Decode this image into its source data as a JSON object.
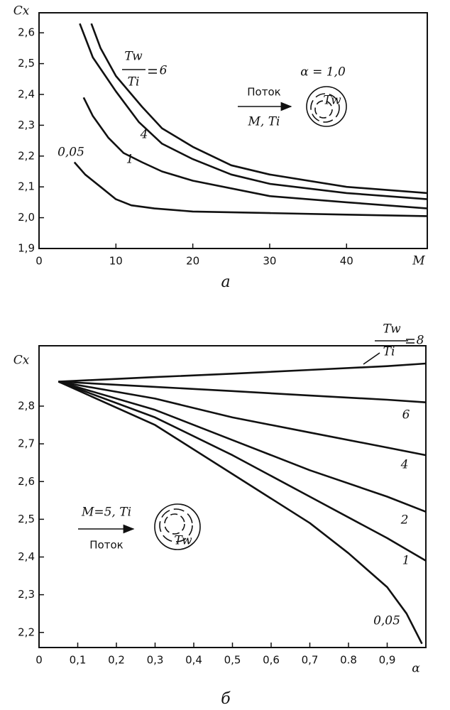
{
  "chart_data": [
    {
      "type": "line",
      "y_label": "Cx",
      "x_label": "M",
      "caption": "a",
      "xlim": [
        0,
        50.5
      ],
      "ylim": [
        1.9,
        2.665
      ],
      "xticks": [
        0,
        10,
        20,
        30,
        40
      ],
      "yticks": [
        {
          "value": 1.9,
          "label": "1,9"
        },
        {
          "value": 2.0,
          "label": "2,0"
        },
        {
          "value": 2.1,
          "label": "2,1"
        },
        {
          "value": 2.2,
          "label": "2,2"
        },
        {
          "value": 2.3,
          "label": "2,3"
        },
        {
          "value": 2.4,
          "label": "2,4"
        },
        {
          "value": 2.5,
          "label": "2,5"
        },
        {
          "value": 2.6,
          "label": "2,6"
        }
      ],
      "series": [
        {
          "name": "6",
          "color": "#111111",
          "x": [
            6.8,
            8,
            10,
            13.4,
            16,
            20,
            25,
            30,
            40,
            50.5
          ],
          "values": [
            2.63,
            2.55,
            2.46,
            2.36,
            2.29,
            2.23,
            2.17,
            2.14,
            2.1,
            2.08
          ]
        },
        {
          "name": "4",
          "color": "#111111",
          "x": [
            5.3,
            7,
            10,
            13,
            16,
            20,
            25,
            30,
            40,
            50.5
          ],
          "values": [
            2.63,
            2.52,
            2.41,
            2.31,
            2.24,
            2.19,
            2.14,
            2.11,
            2.08,
            2.06
          ]
        },
        {
          "name": "1",
          "color": "#111111",
          "x": [
            5.8,
            7,
            9,
            11,
            13.4,
            16,
            20,
            30,
            40,
            50.5
          ],
          "values": [
            2.39,
            2.33,
            2.26,
            2.21,
            2.18,
            2.15,
            2.12,
            2.07,
            2.05,
            2.03
          ]
        },
        {
          "name": "0,05",
          "color": "#111111",
          "x": [
            4.6,
            6,
            8,
            10,
            12,
            15,
            20,
            30,
            40,
            50.5
          ],
          "values": [
            2.18,
            2.14,
            2.1,
            2.06,
            2.04,
            2.03,
            2.02,
            2.015,
            2.01,
            2.005
          ]
        }
      ],
      "annotations": {
        "ratio_top": "Tw",
        "ratio_bottom": "Ti",
        "alpha": "α = 1,0",
        "flow": "Поток",
        "flow_params": "M, Ti",
        "sphere": "Tw"
      }
    },
    {
      "type": "line",
      "y_label": "Cx",
      "x_label": "α",
      "caption": "б",
      "xlim": [
        0,
        1.0
      ],
      "ylim": [
        2.16,
        2.96
      ],
      "xticks": [
        0,
        {
          "value": 0.1,
          "label": "0,1"
        },
        {
          "value": 0.2,
          "label": "0,2"
        },
        {
          "value": 0.3,
          "label": "0,3"
        },
        {
          "value": 0.4,
          "label": "0,4"
        },
        {
          "value": 0.5,
          "label": "0,5"
        },
        {
          "value": 0.6,
          "label": "0,6"
        },
        {
          "value": 0.7,
          "label": "0,7"
        },
        {
          "value": 0.8,
          "label": "0.8"
        },
        {
          "value": 0.9,
          "label": "0,9"
        }
      ],
      "yticks": [
        {
          "value": 2.2,
          "label": "2,2"
        },
        {
          "value": 2.3,
          "label": "2,3"
        },
        {
          "value": 2.4,
          "label": "2,4"
        },
        {
          "value": 2.5,
          "label": "2,5"
        },
        {
          "value": 2.6,
          "label": "2,6"
        },
        {
          "value": 2.7,
          "label": "2,7"
        },
        {
          "value": 2.8,
          "label": "2,8"
        }
      ],
      "series": [
        {
          "name": "8",
          "color": "#111111",
          "x": [
            0.05,
            0.3,
            0.5,
            0.7,
            0.9,
            1.0
          ],
          "values": [
            2.865,
            2.877,
            2.886,
            2.896,
            2.906,
            2.913
          ]
        },
        {
          "name": "6",
          "color": "#111111",
          "x": [
            0.05,
            0.3,
            0.5,
            0.7,
            0.9,
            1.0
          ],
          "values": [
            2.865,
            2.851,
            2.84,
            2.828,
            2.817,
            2.81
          ]
        },
        {
          "name": "4",
          "color": "#111111",
          "x": [
            0.05,
            0.3,
            0.5,
            0.7,
            0.9,
            1.0
          ],
          "values": [
            2.865,
            2.82,
            2.77,
            2.73,
            2.69,
            2.67
          ]
        },
        {
          "name": "2",
          "color": "#111111",
          "x": [
            0.05,
            0.3,
            0.5,
            0.7,
            0.9,
            1.0
          ],
          "values": [
            2.865,
            2.79,
            2.71,
            2.63,
            2.56,
            2.52
          ]
        },
        {
          "name": "1",
          "color": "#111111",
          "x": [
            0.05,
            0.3,
            0.5,
            0.7,
            0.9,
            1.0
          ],
          "values": [
            2.865,
            2.77,
            2.67,
            2.56,
            2.45,
            2.39
          ]
        },
        {
          "name": "0,05",
          "color": "#111111",
          "x": [
            0.05,
            0.3,
            0.5,
            0.7,
            0.8,
            0.9,
            0.95,
            0.99
          ],
          "values": [
            2.865,
            2.75,
            2.62,
            2.49,
            2.41,
            2.32,
            2.25,
            2.17
          ]
        }
      ],
      "annotations": {
        "ratio_top": "Tw",
        "ratio_bottom": "Ti",
        "flow_params": "M=5, Ti",
        "flow": "Поток",
        "sphere": "Tw"
      }
    }
  ]
}
